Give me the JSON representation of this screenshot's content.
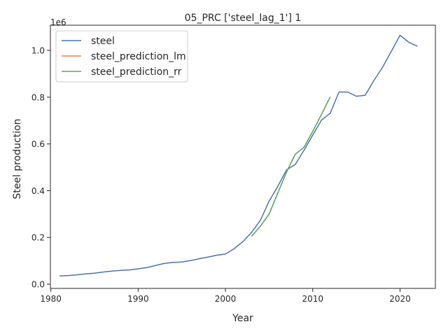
{
  "chart_data": {
    "type": "line",
    "title": "05_PRC ['steel_lag_1'] 1",
    "xlabel": "Year",
    "ylabel": "Steel production",
    "y_offset_label": "1e6",
    "xlim": [
      1979.95,
      2024.05
    ],
    "ylim": [
      -0.018,
      1.108
    ],
    "x_ticks": [
      1980,
      1990,
      2000,
      2010,
      2020
    ],
    "y_ticks": [
      0.0,
      0.2,
      0.4,
      0.6,
      0.8,
      1.0
    ],
    "y_tick_labels": [
      "0.0",
      "0.2",
      "0.4",
      "0.6",
      "0.8",
      "1.0"
    ],
    "grid": false,
    "legend_position": "top-left",
    "series": [
      {
        "name": "steel",
        "color": "#4c72b0",
        "x": [
          1981,
          1982,
          1983,
          1984,
          1985,
          1986,
          1987,
          1988,
          1989,
          1990,
          1991,
          1992,
          1993,
          1994,
          1995,
          1996,
          1997,
          1998,
          1999,
          2000,
          2001,
          2002,
          2003,
          2004,
          2005,
          2006,
          2007,
          2008,
          2009,
          2010,
          2011,
          2012,
          2013,
          2014,
          2015,
          2016,
          2017,
          2018,
          2019,
          2020,
          2021,
          2022
        ],
        "y": [
          0.035,
          0.037,
          0.04,
          0.044,
          0.047,
          0.052,
          0.056,
          0.059,
          0.061,
          0.066,
          0.071,
          0.08,
          0.089,
          0.093,
          0.095,
          0.101,
          0.109,
          0.116,
          0.124,
          0.129,
          0.152,
          0.182,
          0.222,
          0.273,
          0.355,
          0.419,
          0.489,
          0.512,
          0.573,
          0.638,
          0.702,
          0.731,
          0.822,
          0.822,
          0.804,
          0.808,
          0.871,
          0.928,
          0.996,
          1.065,
          1.035,
          1.018
        ]
      },
      {
        "name": "steel_prediction_lm",
        "color": "#dd8452",
        "x": [
          2003,
          2004,
          2005,
          2006,
          2007,
          2008,
          2009,
          2010,
          2011,
          2012
        ],
        "y": [
          0.205,
          0.248,
          0.3,
          0.39,
          0.48,
          0.556,
          0.586,
          0.654,
          0.726,
          0.801
        ]
      },
      {
        "name": "steel_prediction_rr",
        "color": "#55a868",
        "x": [
          2003,
          2004,
          2005,
          2006,
          2007,
          2008,
          2009,
          2010,
          2011,
          2012
        ],
        "y": [
          0.205,
          0.248,
          0.3,
          0.39,
          0.48,
          0.556,
          0.586,
          0.654,
          0.726,
          0.801
        ]
      }
    ]
  }
}
